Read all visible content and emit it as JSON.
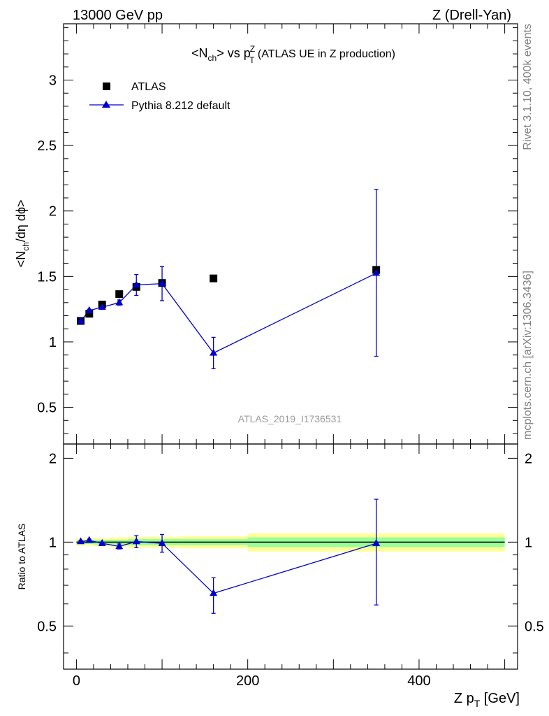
{
  "header": {
    "left": "13000 GeV pp",
    "right": "Z (Drell-Yan)"
  },
  "plot_title": {
    "main": "<N",
    "main_sub": "ch",
    "main_end": "> vs p",
    "pt_sup": "Z",
    "pt_sub": "T",
    "paren": " (ATLAS UE in Z production)"
  },
  "side_labels": {
    "rivet": "Rivet 3.1.10,  400k events",
    "mcplots": "mcplots.cern.ch [arXiv:1306.3436]"
  },
  "watermark": "ATLAS_2019_I1736531",
  "legend": {
    "data_label": "ATLAS",
    "mc_label": "Pythia 8.212 default",
    "position": "top-left"
  },
  "colors": {
    "data": "#000000",
    "mc": "#0000cc",
    "band_inner": "#99ff99",
    "band_outer": "#ffff99"
  },
  "chart_data": [
    {
      "type": "scatter",
      "panel": "main",
      "ylabel": "<N",
      "ylabel_sub": "ch",
      "ylabel_end": "/dη dϕ>",
      "xlim": [
        -15,
        515
      ],
      "ylim": [
        0.22,
        3.43
      ],
      "yticks": [
        0.5,
        1,
        1.5,
        2,
        2.5,
        3
      ],
      "ytick_labels": [
        "0.5",
        "1",
        "1.5",
        "2",
        "2.5",
        "3"
      ],
      "series": [
        {
          "name": "ATLAS",
          "marker": "square",
          "x": [
            5,
            15,
            30,
            50,
            70,
            100,
            160,
            350
          ],
          "y": [
            1.16,
            1.215,
            1.285,
            1.365,
            1.42,
            1.45,
            1.485,
            1.55
          ]
        },
        {
          "name": "Pythia 8.212 default",
          "marker": "triangle",
          "x": [
            5,
            15,
            30,
            50,
            70,
            100,
            160,
            350
          ],
          "y": [
            1.16,
            1.24,
            1.265,
            1.3,
            1.435,
            1.445,
            0.915,
            1.525
          ],
          "err_low": [
            0.01,
            0.01,
            0.01,
            0.02,
            0.08,
            0.13,
            0.12,
            0.635
          ],
          "err_high": [
            0.01,
            0.01,
            0.01,
            0.02,
            0.08,
            0.13,
            0.12,
            0.64
          ]
        }
      ]
    },
    {
      "type": "line",
      "panel": "ratio",
      "ylabel": "Ratio to ATLAS",
      "xlabel": "Z p",
      "xlabel_sub": "T",
      "xlabel_end": " [GeV]",
      "xlim": [
        -15,
        515
      ],
      "ylim": [
        0.35,
        2.25
      ],
      "yticks": [
        0.5,
        1,
        2
      ],
      "ytick_labels": [
        "0.5",
        "1",
        "2"
      ],
      "xticks": [
        0,
        200,
        400
      ],
      "xtick_labels": [
        "0",
        "200",
        "400"
      ],
      "bands": [
        {
          "x0": 0,
          "x1": 10,
          "inner": [
            0.985,
            1.015
          ],
          "outer": [
            0.97,
            1.03
          ]
        },
        {
          "x0": 10,
          "x1": 20,
          "inner": [
            0.985,
            1.015
          ],
          "outer": [
            0.97,
            1.03
          ]
        },
        {
          "x0": 20,
          "x1": 40,
          "inner": [
            0.98,
            1.02
          ],
          "outer": [
            0.965,
            1.035
          ]
        },
        {
          "x0": 40,
          "x1": 60,
          "inner": [
            0.98,
            1.02
          ],
          "outer": [
            0.96,
            1.04
          ]
        },
        {
          "x0": 60,
          "x1": 80,
          "inner": [
            0.975,
            1.025
          ],
          "outer": [
            0.955,
            1.045
          ]
        },
        {
          "x0": 80,
          "x1": 120,
          "inner": [
            0.975,
            1.025
          ],
          "outer": [
            0.955,
            1.045
          ]
        },
        {
          "x0": 120,
          "x1": 200,
          "inner": [
            0.975,
            1.025
          ],
          "outer": [
            0.95,
            1.05
          ]
        },
        {
          "x0": 200,
          "x1": 500,
          "inner": [
            0.96,
            1.04
          ],
          "outer": [
            0.925,
            1.075
          ]
        }
      ],
      "series": [
        {
          "name": "Pythia 8.212 default",
          "marker": "triangle",
          "x": [
            5,
            15,
            30,
            50,
            70,
            100,
            160,
            350
          ],
          "y": [
            1.005,
            1.015,
            0.99,
            0.965,
            1.005,
            0.99,
            0.655,
            0.99
          ],
          "err_low": [
            0.01,
            0.01,
            0.01,
            0.02,
            0.05,
            0.07,
            0.1,
            0.395
          ],
          "err_high": [
            0.01,
            0.01,
            0.01,
            0.02,
            0.05,
            0.075,
            0.09,
            0.435
          ]
        }
      ]
    }
  ]
}
